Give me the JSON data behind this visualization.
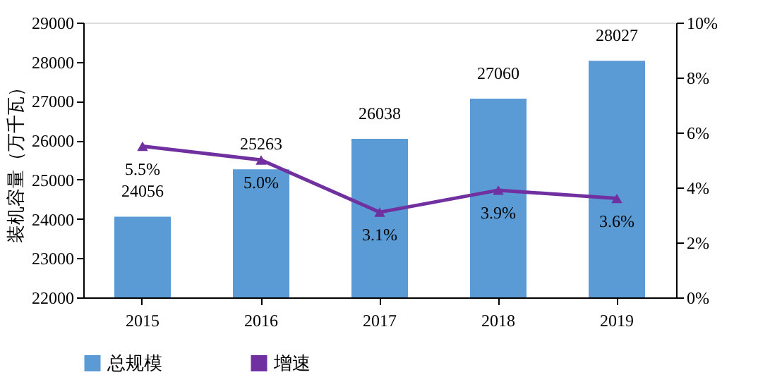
{
  "chart_data": {
    "type": "bar",
    "ylabel": "装机容量（万千瓦）",
    "categories": [
      "2015",
      "2016",
      "2017",
      "2018",
      "2019"
    ],
    "series": [
      {
        "name": "总规模",
        "color": "#5b9bd5",
        "values": [
          24056,
          25263,
          26038,
          27060,
          28027
        ],
        "value_labels": [
          "24056",
          "25263",
          "26038",
          "27060",
          "28027"
        ]
      },
      {
        "name": "增速",
        "type": "line",
        "axis": "y2",
        "color": "#7030a0",
        "marker": "triangle",
        "values": [
          5.5,
          5.0,
          3.1,
          3.9,
          3.6
        ],
        "value_labels": [
          "5.5%",
          "5.0%",
          "3.1%",
          "3.9%",
          "3.6%"
        ]
      }
    ],
    "ylim": [
      22000,
      29000
    ],
    "yticks": [
      22000,
      23000,
      24000,
      25000,
      26000,
      27000,
      28000,
      29000
    ],
    "y2lim": [
      0,
      10
    ],
    "y2ticks": [
      {
        "value": 0,
        "label": "0%"
      },
      {
        "value": 2,
        "label": "2%"
      },
      {
        "value": 4,
        "label": "4%"
      },
      {
        "value": 6,
        "label": "6%"
      },
      {
        "value": 8,
        "label": "8%"
      },
      {
        "value": 10,
        "label": "10%"
      }
    ],
    "grid": false,
    "legend": "bottom"
  }
}
